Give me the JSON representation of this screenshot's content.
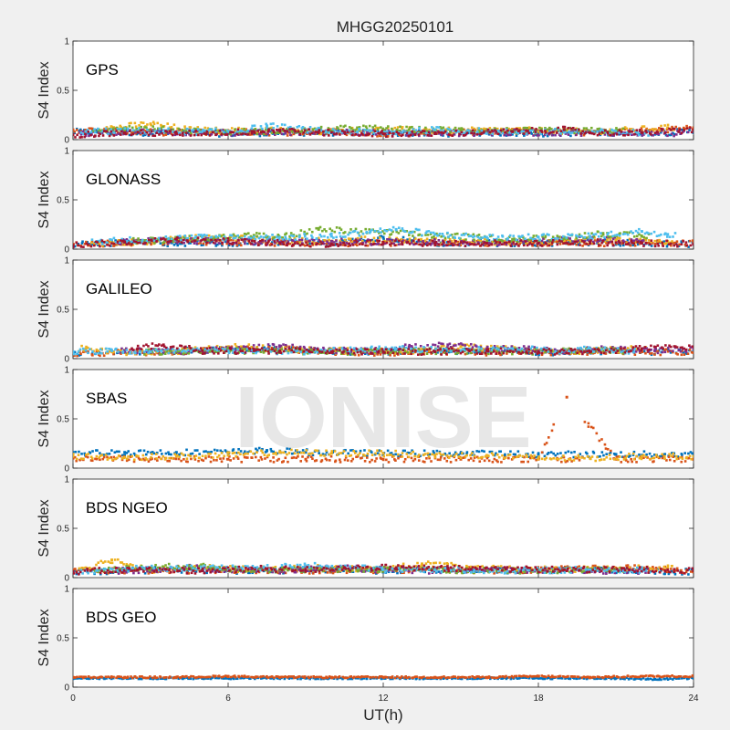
{
  "figure": {
    "title": "MHGG20250101",
    "xlabel": "UT(h)",
    "watermark": "IONISE",
    "background": "#f0f0f0",
    "axes_background": "#ffffff"
  },
  "chart_data": {
    "type": "scatter",
    "title": "MHGG20250101",
    "xlabel": "UT(h)",
    "ylabel": "S4 Index",
    "xlim": [
      0,
      24
    ],
    "ylim": [
      0,
      1
    ],
    "xticks": [
      "0",
      "6",
      "12",
      "18",
      "24"
    ],
    "yticks": [
      "0",
      "0.5",
      "1"
    ],
    "grid": false,
    "colors": [
      "#0072BD",
      "#D95319",
      "#EDB120",
      "#7E2F8E",
      "#77AC30",
      "#4DBEEE",
      "#A2142F"
    ],
    "panels": [
      {
        "label": "GPS",
        "series": [
          {
            "color": "#0072BD",
            "x": [
              0,
              2,
              4,
              6,
              8,
              10,
              12,
              14,
              16,
              18,
              20,
              22,
              24
            ],
            "y": [
              0.08,
              0.07,
              0.07,
              0.06,
              0.07,
              0.07,
              0.07,
              0.06,
              0.07,
              0.06,
              0.07,
              0.07,
              0.08
            ]
          },
          {
            "color": "#D95319",
            "x": [
              0,
              2,
              4,
              6,
              8,
              10,
              12,
              14,
              16,
              18,
              20,
              22,
              24
            ],
            "y": [
              0.1,
              0.08,
              0.07,
              0.08,
              0.07,
              0.08,
              0.06,
              0.07,
              0.08,
              0.09,
              0.07,
              0.09,
              0.12
            ]
          },
          {
            "color": "#EDB120",
            "x": [
              1.5,
              3,
              4.5,
              6,
              7.5,
              9,
              12,
              15,
              17,
              19,
              21,
              23
            ],
            "y": [
              0.12,
              0.16,
              0.1,
              0.09,
              0.1,
              0.08,
              0.1,
              0.09,
              0.1,
              0.08,
              0.09,
              0.12
            ]
          },
          {
            "color": "#7E2F8E",
            "x": [
              0.5,
              2.5,
              5,
              8,
              10.5,
              13,
              16,
              18.5,
              21,
              23.5
            ],
            "y": [
              0.06,
              0.08,
              0.07,
              0.07,
              0.08,
              0.06,
              0.07,
              0.07,
              0.07,
              0.06
            ]
          },
          {
            "color": "#77AC30",
            "x": [
              1,
              2,
              4.5,
              6,
              9,
              11,
              13,
              15,
              17,
              19,
              21
            ],
            "y": [
              0.1,
              0.12,
              0.09,
              0.08,
              0.09,
              0.12,
              0.1,
              0.1,
              0.09,
              0.09,
              0.09
            ]
          },
          {
            "color": "#4DBEEE",
            "x": [
              0.5,
              2.5,
              5,
              6.5,
              7.5,
              9.5,
              11,
              12,
              14,
              16.5,
              19,
              22
            ],
            "y": [
              0.08,
              0.09,
              0.08,
              0.09,
              0.14,
              0.09,
              0.08,
              0.07,
              0.1,
              0.08,
              0.08,
              0.07
            ]
          },
          {
            "color": "#A2142F",
            "x": [
              0,
              2,
              4,
              7,
              8,
              9.5,
              12,
              14,
              17,
              19,
              20,
              22,
              24
            ],
            "y": [
              0.05,
              0.07,
              0.06,
              0.08,
              0.1,
              0.07,
              0.06,
              0.06,
              0.08,
              0.1,
              0.07,
              0.07,
              0.1
            ]
          }
        ]
      },
      {
        "label": "GLONASS",
        "series": [
          {
            "color": "#0072BD",
            "x": [
              0,
              2,
              4,
              6,
              8,
              10,
              12,
              14,
              16,
              18,
              20,
              22,
              24
            ],
            "y": [
              0.05,
              0.06,
              0.06,
              0.06,
              0.07,
              0.06,
              0.12,
              0.06,
              0.06,
              0.06,
              0.07,
              0.06,
              0.05
            ]
          },
          {
            "color": "#D95319",
            "x": [
              0,
              2,
              4,
              6,
              8,
              10,
              12,
              14,
              16,
              18,
              20,
              22,
              24
            ],
            "y": [
              0.05,
              0.06,
              0.08,
              0.07,
              0.06,
              0.06,
              0.06,
              0.07,
              0.06,
              0.06,
              0.06,
              0.06,
              0.06
            ]
          },
          {
            "color": "#EDB120",
            "x": [
              1,
              3,
              5,
              7,
              9,
              11,
              13,
              15,
              17,
              19,
              21,
              23
            ],
            "y": [
              0.06,
              0.08,
              0.12,
              0.1,
              0.08,
              0.1,
              0.08,
              0.08,
              0.07,
              0.08,
              0.09,
              0.08
            ]
          },
          {
            "color": "#7E2F8E",
            "x": [
              2,
              4,
              6,
              8,
              10,
              12,
              14,
              16,
              18,
              20,
              22
            ],
            "y": [
              0.07,
              0.09,
              0.08,
              0.07,
              0.08,
              0.07,
              0.07,
              0.06,
              0.08,
              0.1,
              0.08
            ]
          },
          {
            "color": "#77AC30",
            "x": [
              2.5,
              5.5,
              7,
              8,
              9.5,
              17,
              19,
              20.5,
              22
            ],
            "y": [
              0.08,
              0.12,
              0.14,
              0.12,
              0.2,
              0.1,
              0.12,
              0.16,
              0.13
            ]
          },
          {
            "color": "#4DBEEE",
            "x": [
              1,
              3,
              5,
              8,
              10,
              11.5,
              12.5,
              14,
              16,
              18,
              20,
              22,
              23
            ],
            "y": [
              0.08,
              0.1,
              0.12,
              0.12,
              0.13,
              0.18,
              0.2,
              0.15,
              0.12,
              0.12,
              0.13,
              0.18,
              0.15
            ]
          },
          {
            "color": "#A2142F",
            "x": [
              0,
              2,
              4,
              6,
              8,
              10,
              12,
              14,
              16,
              18,
              20,
              22,
              24
            ],
            "y": [
              0.04,
              0.07,
              0.1,
              0.08,
              0.06,
              0.05,
              0.07,
              0.06,
              0.06,
              0.06,
              0.07,
              0.06,
              0.05
            ]
          }
        ]
      },
      {
        "label": "GALILEO",
        "series": [
          {
            "color": "#0072BD",
            "x": [
              0,
              2,
              4,
              6,
              8,
              10,
              12,
              14,
              16,
              18,
              20,
              22,
              24
            ],
            "y": [
              0.06,
              0.07,
              0.08,
              0.09,
              0.1,
              0.07,
              0.07,
              0.08,
              0.07,
              0.06,
              0.07,
              0.07,
              0.06
            ]
          },
          {
            "color": "#D95319",
            "x": [
              0,
              2,
              4,
              6,
              8,
              10,
              12,
              14,
              16,
              18,
              20,
              22,
              24
            ],
            "y": [
              0.05,
              0.06,
              0.07,
              0.1,
              0.1,
              0.07,
              0.06,
              0.07,
              0.06,
              0.06,
              0.06,
              0.07,
              0.06
            ]
          },
          {
            "color": "#EDB120",
            "x": [
              0.5,
              2,
              4.5,
              6.5,
              8,
              10,
              13.5,
              15,
              17,
              18.5,
              20,
              22
            ],
            "y": [
              0.1,
              0.06,
              0.08,
              0.12,
              0.1,
              0.08,
              0.08,
              0.12,
              0.1,
              0.07,
              0.08,
              0.1
            ]
          },
          {
            "color": "#7E2F8E",
            "x": [
              2,
              4,
              6.5,
              8,
              10,
              12,
              13,
              14.5,
              16,
              17.5,
              19,
              21,
              22.5,
              24
            ],
            "y": [
              0.08,
              0.07,
              0.1,
              0.12,
              0.08,
              0.08,
              0.12,
              0.14,
              0.1,
              0.1,
              0.08,
              0.1,
              0.08,
              0.1
            ]
          },
          {
            "color": "#77AC30",
            "x": [
              3,
              6,
              9,
              12,
              15,
              18,
              21
            ],
            "y": [
              0.07,
              0.08,
              0.07,
              0.07,
              0.08,
              0.07,
              0.08
            ]
          },
          {
            "color": "#4DBEEE",
            "x": [
              0,
              1.5,
              3,
              6,
              9,
              11,
              12.5,
              15,
              17,
              19,
              20,
              21.5
            ],
            "y": [
              0.07,
              0.08,
              0.07,
              0.08,
              0.07,
              0.09,
              0.1,
              0.08,
              0.1,
              0.08,
              0.1,
              0.08
            ]
          },
          {
            "color": "#A2142F",
            "x": [
              2.5,
              3.5,
              5,
              7,
              8,
              10,
              12,
              14,
              16,
              18,
              20,
              22,
              24
            ],
            "y": [
              0.1,
              0.14,
              0.08,
              0.08,
              0.08,
              0.07,
              0.07,
              0.07,
              0.08,
              0.07,
              0.07,
              0.1,
              0.12
            ]
          }
        ]
      },
      {
        "label": "SBAS",
        "series": [
          {
            "color": "#0072BD",
            "x": [
              0,
              2,
              4,
              6,
              7.5,
              9,
              12,
              15,
              18,
              21,
              24
            ],
            "y": [
              0.15,
              0.16,
              0.16,
              0.16,
              0.18,
              0.16,
              0.15,
              0.15,
              0.14,
              0.14,
              0.14
            ]
          },
          {
            "color": "#D95319",
            "x": [
              0,
              3,
              6,
              9,
              12,
              15,
              18,
              19.1,
              21,
              24
            ],
            "y": [
              0.1,
              0.09,
              0.09,
              0.09,
              0.09,
              0.09,
              0.09,
              0.72,
              0.09,
              0.09
            ]
          },
          {
            "color": "#EDB120",
            "x": [
              0,
              2,
              4,
              6,
              8,
              10,
              12,
              14,
              16,
              18,
              20,
              22,
              24
            ],
            "y": [
              0.12,
              0.11,
              0.12,
              0.13,
              0.16,
              0.15,
              0.15,
              0.13,
              0.13,
              0.1,
              0.1,
              0.12,
              0.12
            ]
          }
        ]
      },
      {
        "label": "BDS NGEO",
        "series": [
          {
            "color": "#0072BD",
            "x": [
              0,
              2,
              4,
              6,
              8,
              10,
              12,
              14,
              16,
              18,
              20,
              22,
              24
            ],
            "y": [
              0.06,
              0.07,
              0.08,
              0.07,
              0.07,
              0.08,
              0.07,
              0.08,
              0.07,
              0.07,
              0.08,
              0.07,
              0.06
            ]
          },
          {
            "color": "#D95319",
            "x": [
              0,
              2,
              4,
              6,
              8,
              10,
              12,
              14,
              16,
              18,
              20,
              22,
              24
            ],
            "y": [
              0.08,
              0.07,
              0.07,
              0.08,
              0.07,
              0.07,
              0.07,
              0.09,
              0.07,
              0.08,
              0.09,
              0.1,
              0.07
            ]
          },
          {
            "color": "#EDB120",
            "x": [
              0.5,
              1.5,
              3,
              5,
              7,
              9.5,
              12,
              13.5,
              16,
              19,
              21,
              23
            ],
            "y": [
              0.1,
              0.18,
              0.08,
              0.1,
              0.08,
              0.1,
              0.08,
              0.14,
              0.09,
              0.08,
              0.09,
              0.1
            ]
          },
          {
            "color": "#7E2F8E",
            "x": [
              2,
              4.5,
              6,
              8,
              10,
              12,
              14,
              16,
              18,
              20,
              22
            ],
            "y": [
              0.07,
              0.1,
              0.08,
              0.07,
              0.1,
              0.08,
              0.07,
              0.07,
              0.07,
              0.07,
              0.07
            ]
          },
          {
            "color": "#77AC30",
            "x": [
              1,
              3,
              4.5,
              6,
              8,
              10,
              13,
              15,
              18,
              21
            ],
            "y": [
              0.08,
              0.1,
              0.12,
              0.09,
              0.08,
              0.08,
              0.09,
              0.07,
              0.07,
              0.08
            ]
          },
          {
            "color": "#4DBEEE",
            "x": [
              0.5,
              2,
              5,
              7,
              9,
              11,
              12,
              14,
              17,
              20,
              22
            ],
            "y": [
              0.07,
              0.09,
              0.1,
              0.09,
              0.12,
              0.1,
              0.08,
              0.08,
              0.07,
              0.08,
              0.08
            ]
          },
          {
            "color": "#A2142F",
            "x": [
              0,
              2.5,
              5,
              7.5,
              9,
              10.5,
              12.5,
              14.5,
              17,
              19,
              21.5,
              23,
              24
            ],
            "y": [
              0.06,
              0.08,
              0.07,
              0.09,
              0.08,
              0.1,
              0.1,
              0.09,
              0.09,
              0.08,
              0.08,
              0.08,
              0.07
            ]
          }
        ]
      },
      {
        "label": "BDS GEO",
        "series": [
          {
            "color": "#0072BD",
            "x": [
              0,
              3,
              6,
              9,
              12,
              15,
              18,
              21,
              22.5,
              24
            ],
            "y": [
              0.09,
              0.09,
              0.09,
              0.09,
              0.09,
              0.09,
              0.09,
              0.09,
              0.08,
              0.09
            ]
          },
          {
            "color": "#D95319",
            "x": [
              0,
              2,
              4,
              6,
              8,
              10,
              12,
              14,
              16,
              18,
              20,
              22,
              24
            ],
            "y": [
              0.1,
              0.1,
              0.1,
              0.11,
              0.1,
              0.1,
              0.1,
              0.1,
              0.1,
              0.11,
              0.1,
              0.11,
              0.11
            ]
          }
        ]
      }
    ]
  }
}
